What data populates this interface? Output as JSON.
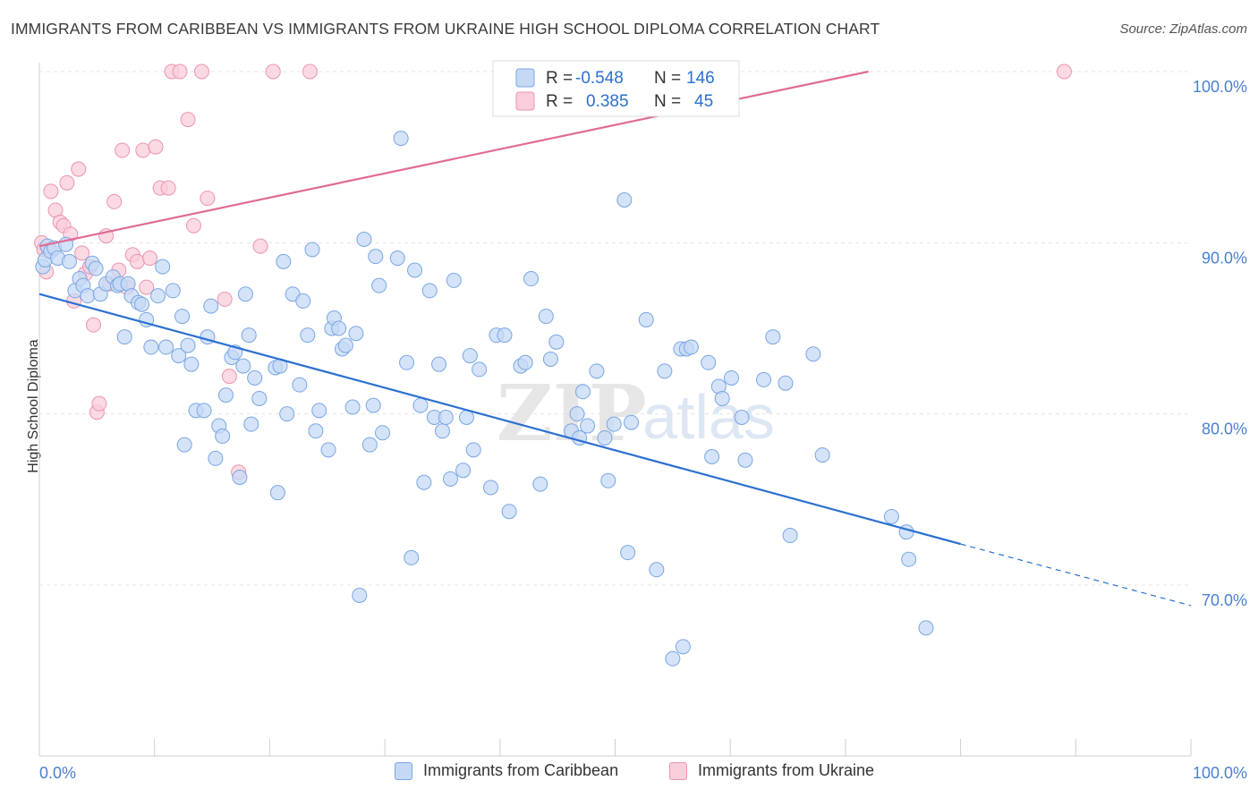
{
  "header": {
    "title": "IMMIGRANTS FROM CARIBBEAN VS IMMIGRANTS FROM UKRAINE HIGH SCHOOL DIPLOMA CORRELATION CHART",
    "source": "Source: ZipAtlas.com"
  },
  "watermark": {
    "zip": "ZIP",
    "atlas": "atlas"
  },
  "colors": {
    "blue_fill": "#c5d9f5",
    "blue_stroke": "#7aa6e3",
    "blue_line": "#2b6fd0",
    "pink_fill": "#f9cdda",
    "pink_stroke": "#eb94b0",
    "pink_line": "#e06b93",
    "axis_text": "#4a7fd4",
    "grid": "#e4e4e4"
  },
  "legend_top": {
    "rows": [
      {
        "r_label": "R =",
        "r_value": "-0.548",
        "n_label": "N =",
        "n_value": "146"
      },
      {
        "r_label": "R =",
        "r_value": "0.385",
        "n_label": "N =",
        "n_value": "45"
      }
    ]
  },
  "legend_bottom": {
    "items": [
      {
        "label": "Immigrants from Caribbean"
      },
      {
        "label": "Immigrants from Ukraine"
      }
    ]
  },
  "chart_data": {
    "type": "scatter",
    "title": "IMMIGRANTS FROM CARIBBEAN VS IMMIGRANTS FROM UKRAINE HIGH SCHOOL DIPLOMA CORRELATION CHART",
    "xlabel": "",
    "ylabel": "High School Diploma",
    "xlim": [
      0,
      100
    ],
    "ylim": [
      60,
      104
    ],
    "x_tick_labels": [
      "0.0%",
      "100.0%"
    ],
    "y_ticks": [
      70,
      80,
      90,
      100
    ],
    "y_tick_labels": [
      "70.0%",
      "80.0%",
      "90.0%",
      "100.0%"
    ],
    "grid": true,
    "legend_position": "top-center",
    "series": [
      {
        "name": "Immigrants from Caribbean",
        "r": -0.548,
        "n": 146,
        "trend": {
          "x0": 0,
          "y0": 87.0,
          "x1": 80,
          "y1": 72.4,
          "dash_to_x": 100,
          "dash_to_y": 68.8
        },
        "points": [
          [
            0.3,
            88.6
          ],
          [
            0.5,
            89.0
          ],
          [
            0.7,
            89.8
          ],
          [
            1.0,
            89.5
          ],
          [
            1.3,
            89.7
          ],
          [
            1.6,
            89.1
          ],
          [
            2.3,
            89.9
          ],
          [
            2.6,
            88.9
          ],
          [
            3.1,
            87.2
          ],
          [
            3.5,
            87.9
          ],
          [
            3.8,
            87.5
          ],
          [
            4.2,
            86.9
          ],
          [
            4.6,
            88.8
          ],
          [
            4.9,
            88.5
          ],
          [
            5.3,
            87.0
          ],
          [
            5.8,
            87.6
          ],
          [
            6.4,
            88.0
          ],
          [
            6.8,
            87.5
          ],
          [
            7.0,
            87.6
          ],
          [
            7.4,
            84.5
          ],
          [
            7.7,
            87.6
          ],
          [
            8.0,
            86.9
          ],
          [
            8.6,
            86.5
          ],
          [
            8.9,
            86.4
          ],
          [
            9.3,
            85.5
          ],
          [
            9.7,
            83.9
          ],
          [
            10.3,
            86.9
          ],
          [
            10.7,
            88.6
          ],
          [
            11.0,
            83.9
          ],
          [
            11.6,
            87.2
          ],
          [
            12.1,
            83.4
          ],
          [
            12.4,
            85.7
          ],
          [
            12.6,
            78.2
          ],
          [
            12.9,
            84.0
          ],
          [
            13.2,
            82.9
          ],
          [
            13.6,
            80.2
          ],
          [
            14.3,
            80.2
          ],
          [
            14.6,
            84.5
          ],
          [
            14.9,
            86.3
          ],
          [
            15.3,
            77.4
          ],
          [
            15.6,
            79.3
          ],
          [
            15.9,
            78.7
          ],
          [
            16.2,
            81.1
          ],
          [
            16.7,
            83.3
          ],
          [
            17.0,
            83.6
          ],
          [
            17.4,
            76.3
          ],
          [
            17.7,
            82.8
          ],
          [
            17.9,
            87.0
          ],
          [
            18.2,
            84.6
          ],
          [
            18.4,
            79.4
          ],
          [
            18.7,
            82.1
          ],
          [
            19.1,
            80.9
          ],
          [
            20.5,
            82.7
          ],
          [
            20.7,
            75.4
          ],
          [
            20.9,
            82.8
          ],
          [
            21.2,
            88.9
          ],
          [
            21.5,
            80.0
          ],
          [
            22.0,
            87.0
          ],
          [
            22.6,
            81.7
          ],
          [
            22.9,
            86.6
          ],
          [
            23.3,
            84.6
          ],
          [
            23.7,
            89.6
          ],
          [
            24.0,
            79.0
          ],
          [
            24.3,
            80.2
          ],
          [
            25.1,
            77.9
          ],
          [
            25.4,
            85.0
          ],
          [
            25.6,
            85.6
          ],
          [
            26.0,
            85.0
          ],
          [
            26.3,
            83.8
          ],
          [
            26.6,
            84.0
          ],
          [
            27.2,
            80.4
          ],
          [
            27.5,
            84.7
          ],
          [
            27.8,
            69.4
          ],
          [
            28.2,
            90.2
          ],
          [
            28.7,
            78.2
          ],
          [
            29.0,
            80.5
          ],
          [
            29.2,
            89.2
          ],
          [
            29.5,
            87.5
          ],
          [
            29.8,
            78.9
          ],
          [
            31.1,
            89.1
          ],
          [
            31.4,
            96.1
          ],
          [
            31.9,
            83.0
          ],
          [
            32.3,
            71.6
          ],
          [
            32.6,
            88.4
          ],
          [
            33.1,
            80.5
          ],
          [
            33.4,
            76.0
          ],
          [
            33.9,
            87.2
          ],
          [
            34.3,
            79.8
          ],
          [
            34.7,
            82.9
          ],
          [
            35.0,
            79.0
          ],
          [
            35.3,
            79.8
          ],
          [
            35.7,
            76.2
          ],
          [
            36.0,
            87.8
          ],
          [
            36.8,
            76.7
          ],
          [
            37.1,
            79.8
          ],
          [
            37.4,
            83.4
          ],
          [
            37.7,
            77.9
          ],
          [
            38.2,
            82.6
          ],
          [
            39.2,
            75.7
          ],
          [
            39.7,
            84.6
          ],
          [
            40.4,
            84.6
          ],
          [
            40.8,
            74.3
          ],
          [
            41.8,
            82.8
          ],
          [
            42.2,
            83.0
          ],
          [
            42.7,
            87.9
          ],
          [
            43.5,
            75.9
          ],
          [
            44.0,
            85.7
          ],
          [
            44.4,
            83.2
          ],
          [
            44.9,
            84.2
          ],
          [
            46.2,
            79.0
          ],
          [
            46.7,
            80.0
          ],
          [
            46.9,
            78.6
          ],
          [
            47.2,
            81.3
          ],
          [
            47.6,
            79.3
          ],
          [
            48.4,
            82.5
          ],
          [
            49.1,
            78.6
          ],
          [
            49.4,
            76.1
          ],
          [
            49.9,
            79.4
          ],
          [
            50.8,
            92.5
          ],
          [
            51.1,
            71.9
          ],
          [
            51.4,
            79.5
          ],
          [
            52.7,
            85.5
          ],
          [
            53.6,
            70.9
          ],
          [
            54.3,
            82.5
          ],
          [
            55.0,
            65.7
          ],
          [
            55.7,
            83.8
          ],
          [
            55.9,
            66.4
          ],
          [
            56.2,
            83.8
          ],
          [
            56.6,
            83.9
          ],
          [
            58.1,
            83.0
          ],
          [
            58.4,
            77.5
          ],
          [
            59.0,
            81.6
          ],
          [
            59.3,
            80.9
          ],
          [
            60.1,
            82.1
          ],
          [
            61.3,
            77.3
          ],
          [
            62.9,
            82.0
          ],
          [
            64.8,
            81.8
          ],
          [
            65.2,
            72.9
          ],
          [
            67.2,
            83.5
          ],
          [
            68.0,
            77.6
          ],
          [
            74.0,
            74.0
          ],
          [
            75.3,
            73.1
          ],
          [
            75.5,
            71.5
          ],
          [
            77.0,
            67.5
          ],
          [
            63.7,
            84.5
          ],
          [
            61.0,
            79.8
          ]
        ]
      },
      {
        "name": "Immigrants from Ukraine",
        "r": 0.385,
        "n": 45,
        "trend": {
          "x0": 0,
          "y0": 89.8,
          "x1": 72,
          "y1": 100.0
        },
        "points": [
          [
            0.2,
            90.0
          ],
          [
            0.4,
            89.6
          ],
          [
            0.6,
            88.3
          ],
          [
            0.8,
            89.5
          ],
          [
            1.0,
            93.0
          ],
          [
            1.4,
            91.9
          ],
          [
            1.8,
            91.2
          ],
          [
            2.1,
            91.0
          ],
          [
            2.4,
            93.5
          ],
          [
            2.7,
            90.5
          ],
          [
            3.0,
            86.6
          ],
          [
            3.4,
            94.3
          ],
          [
            3.7,
            89.4
          ],
          [
            4.0,
            88.2
          ],
          [
            4.4,
            88.6
          ],
          [
            4.7,
            85.2
          ],
          [
            5.0,
            80.1
          ],
          [
            5.2,
            80.6
          ],
          [
            5.8,
            90.4
          ],
          [
            6.1,
            87.6
          ],
          [
            6.5,
            92.4
          ],
          [
            6.9,
            88.4
          ],
          [
            7.2,
            95.4
          ],
          [
            7.6,
            87.4
          ],
          [
            8.1,
            89.3
          ],
          [
            8.5,
            88.9
          ],
          [
            9.0,
            95.4
          ],
          [
            9.3,
            87.4
          ],
          [
            9.6,
            89.1
          ],
          [
            10.1,
            95.6
          ],
          [
            10.5,
            93.2
          ],
          [
            11.2,
            93.2
          ],
          [
            11.5,
            100.0
          ],
          [
            12.2,
            100.0
          ],
          [
            12.9,
            97.2
          ],
          [
            13.4,
            91.0
          ],
          [
            14.1,
            100.0
          ],
          [
            14.6,
            92.6
          ],
          [
            16.1,
            86.7
          ],
          [
            16.5,
            82.2
          ],
          [
            17.3,
            76.6
          ],
          [
            19.2,
            89.8
          ],
          [
            20.3,
            100.0
          ],
          [
            23.5,
            100.0
          ],
          [
            89.0,
            100.0
          ]
        ]
      }
    ]
  }
}
